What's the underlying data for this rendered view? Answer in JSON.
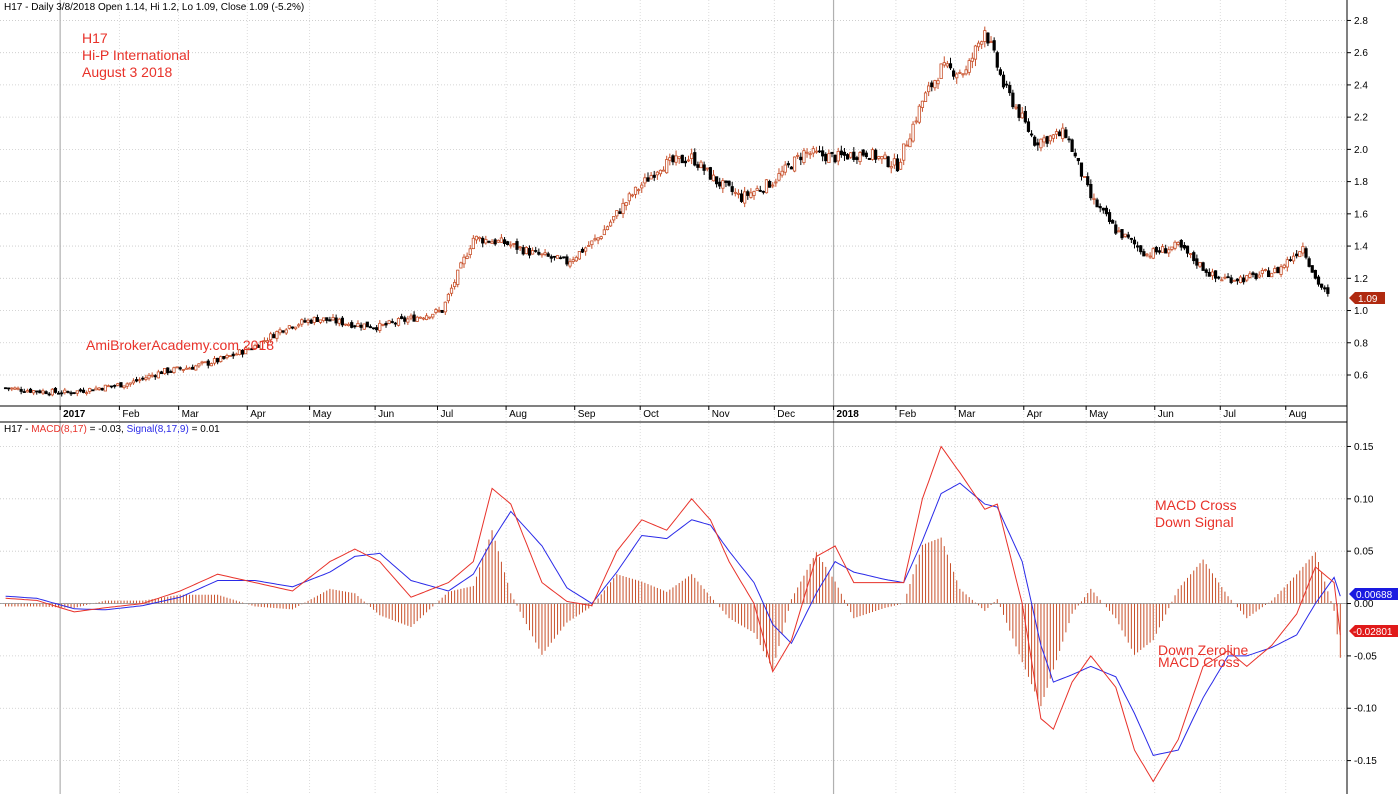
{
  "header": {
    "price_line": "H17 - Daily 3/8/2018 Open 1.14, Hi 1.2, Lo 1.09, Close 1.09 (-5.2%)",
    "macd_prefix": "H17 - ",
    "macd_name": "MACD(8,17)",
    "macd_value": " = -0.03, ",
    "signal_name": "Signal(8,17,9)",
    "signal_value": " = 0.01"
  },
  "annotations": {
    "ticker": "H17",
    "company": "Hi-P International",
    "date": "August 3 2018",
    "watermark": "AmiBrokerAcademy.com  2018",
    "cross_signal_1": "MACD Cross",
    "cross_signal_2": "Down Signal",
    "cross_zero_1": "MACD Cross",
    "cross_zero_2": "Down Zeroline"
  },
  "colors": {
    "up_candle": "#c8502a",
    "down_candle": "#000000",
    "macd_line": "#e8322a",
    "signal_line": "#2a2ae8",
    "histogram": "#c8502a",
    "last_price_badge": "#b02a10",
    "signal_badge": "#1a1ae0",
    "macd_badge": "#e01a1a"
  },
  "chart_data": [
    {
      "type": "candlestick",
      "x_labels": [
        "2017",
        "Feb",
        "Mar",
        "Apr",
        "May",
        "Jun",
        "Jul",
        "Aug",
        "Sep",
        "Oct",
        "Nov",
        "Dec",
        "2018",
        "Feb",
        "Mar",
        "Apr",
        "May",
        "Jun",
        "Jul",
        "Aug"
      ],
      "y_ticks": [
        "0.6",
        "0.8",
        "1.0",
        "1.2",
        "1.4",
        "1.6",
        "1.8",
        "2.0",
        "2.2",
        "2.4",
        "2.6",
        "2.8"
      ],
      "ylim": [
        0.42,
        2.84
      ],
      "last_price": "1.09",
      "close_path": [
        [
          0,
          0.52
        ],
        [
          10,
          0.5
        ],
        [
          20,
          0.49
        ],
        [
          30,
          0.52
        ],
        [
          40,
          0.55
        ],
        [
          50,
          0.62
        ],
        [
          60,
          0.65
        ],
        [
          70,
          0.7
        ],
        [
          80,
          0.78
        ],
        [
          90,
          0.9
        ],
        [
          100,
          0.95
        ],
        [
          110,
          0.92
        ],
        [
          120,
          0.9
        ],
        [
          130,
          0.95
        ],
        [
          140,
          1.0
        ],
        [
          150,
          1.45
        ],
        [
          160,
          1.42
        ],
        [
          170,
          1.35
        ],
        [
          180,
          1.3
        ],
        [
          190,
          1.45
        ],
        [
          200,
          1.7
        ],
        [
          210,
          1.9
        ],
        [
          220,
          1.95
        ],
        [
          228,
          1.8
        ],
        [
          236,
          1.7
        ],
        [
          246,
          1.8
        ],
        [
          256,
          1.98
        ],
        [
          266,
          1.95
        ],
        [
          276,
          1.98
        ],
        [
          286,
          1.9
        ],
        [
          294,
          2.3
        ],
        [
          300,
          2.5
        ],
        [
          308,
          2.48
        ],
        [
          314,
          2.75
        ],
        [
          320,
          2.4
        ],
        [
          330,
          2.05
        ],
        [
          340,
          2.1
        ],
        [
          348,
          1.7
        ],
        [
          356,
          1.5
        ],
        [
          366,
          1.35
        ],
        [
          376,
          1.4
        ],
        [
          388,
          1.2
        ],
        [
          398,
          1.2
        ],
        [
          408,
          1.25
        ],
        [
          416,
          1.4
        ],
        [
          420,
          1.2
        ],
        [
          424,
          1.09
        ]
      ]
    },
    {
      "type": "line",
      "y_ticks": [
        "0.15",
        "0.10",
        "0.05",
        "0.00",
        "-0.05",
        "-0.10",
        "-0.15"
      ],
      "ylim": [
        -0.18,
        0.16
      ],
      "series": [
        {
          "name": "MACD(8,17)",
          "points": [
            [
              0,
              0.005
            ],
            [
              10,
              0.003
            ],
            [
              22,
              -0.008
            ],
            [
              32,
              -0.004
            ],
            [
              44,
              0.0
            ],
            [
              56,
              0.012
            ],
            [
              68,
              0.028
            ],
            [
              80,
              0.02
            ],
            [
              92,
              0.012
            ],
            [
              104,
              0.04
            ],
            [
              112,
              0.052
            ],
            [
              120,
              0.04
            ],
            [
              130,
              0.006
            ],
            [
              142,
              0.02
            ],
            [
              150,
              0.04
            ],
            [
              156,
              0.11
            ],
            [
              162,
              0.095
            ],
            [
              172,
              0.02
            ],
            [
              180,
              0.002
            ],
            [
              188,
              -0.002
            ],
            [
              196,
              0.05
            ],
            [
              204,
              0.08
            ],
            [
              212,
              0.07
            ],
            [
              220,
              0.1
            ],
            [
              226,
              0.08
            ],
            [
              232,
              0.04
            ],
            [
              240,
              0.0
            ],
            [
              246,
              -0.065
            ],
            [
              252,
              -0.035
            ],
            [
              260,
              0.045
            ],
            [
              266,
              0.055
            ],
            [
              272,
              0.02
            ],
            [
              282,
              0.02
            ],
            [
              288,
              0.02
            ],
            [
              294,
              0.1
            ],
            [
              300,
              0.15
            ],
            [
              306,
              0.125
            ],
            [
              314,
              0.09
            ],
            [
              318,
              0.095
            ],
            [
              326,
              0.0
            ],
            [
              332,
              -0.11
            ],
            [
              336,
              -0.12
            ],
            [
              342,
              -0.075
            ],
            [
              348,
              -0.05
            ],
            [
              356,
              -0.08
            ],
            [
              362,
              -0.14
            ],
            [
              368,
              -0.17
            ],
            [
              376,
              -0.13
            ],
            [
              384,
              -0.06
            ],
            [
              392,
              -0.045
            ],
            [
              398,
              -0.06
            ],
            [
              406,
              -0.04
            ],
            [
              414,
              -0.01
            ],
            [
              420,
              0.035
            ],
            [
              426,
              0.02
            ],
            [
              428,
              -0.03
            ]
          ]
        },
        {
          "name": "Signal(8,17,9)",
          "points": [
            [
              0,
              0.007
            ],
            [
              10,
              0.005
            ],
            [
              22,
              -0.005
            ],
            [
              32,
              -0.006
            ],
            [
              44,
              -0.002
            ],
            [
              56,
              0.006
            ],
            [
              68,
              0.022
            ],
            [
              80,
              0.022
            ],
            [
              92,
              0.016
            ],
            [
              104,
              0.03
            ],
            [
              112,
              0.045
            ],
            [
              120,
              0.048
            ],
            [
              130,
              0.022
            ],
            [
              142,
              0.012
            ],
            [
              150,
              0.028
            ],
            [
              156,
              0.06
            ],
            [
              162,
              0.088
            ],
            [
              172,
              0.055
            ],
            [
              180,
              0.015
            ],
            [
              188,
              0.0
            ],
            [
              196,
              0.03
            ],
            [
              204,
              0.065
            ],
            [
              212,
              0.062
            ],
            [
              220,
              0.08
            ],
            [
              226,
              0.075
            ],
            [
              232,
              0.05
            ],
            [
              240,
              0.02
            ],
            [
              246,
              -0.02
            ],
            [
              252,
              -0.038
            ],
            [
              260,
              0.01
            ],
            [
              266,
              0.04
            ],
            [
              272,
              0.03
            ],
            [
              282,
              0.023
            ],
            [
              288,
              0.02
            ],
            [
              294,
              0.06
            ],
            [
              300,
              0.105
            ],
            [
              306,
              0.115
            ],
            [
              314,
              0.095
            ],
            [
              318,
              0.092
            ],
            [
              326,
              0.04
            ],
            [
              332,
              -0.04
            ],
            [
              336,
              -0.075
            ],
            [
              342,
              -0.068
            ],
            [
              348,
              -0.06
            ],
            [
              356,
              -0.07
            ],
            [
              362,
              -0.105
            ],
            [
              368,
              -0.145
            ],
            [
              376,
              -0.14
            ],
            [
              384,
              -0.09
            ],
            [
              392,
              -0.05
            ],
            [
              398,
              -0.05
            ],
            [
              406,
              -0.042
            ],
            [
              414,
              -0.03
            ],
            [
              420,
              0.0
            ],
            [
              426,
              0.025
            ],
            [
              428,
              0.007
            ]
          ]
        }
      ],
      "macd_badge": "-0.02801",
      "signal_badge": "0.00688"
    }
  ]
}
